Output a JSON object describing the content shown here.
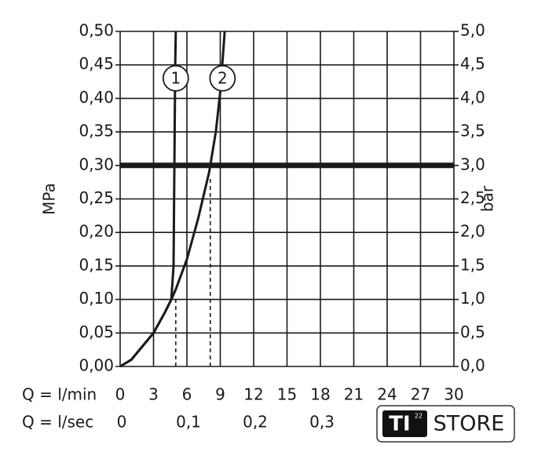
{
  "chart_data": {
    "type": "line",
    "y_label": "MPa",
    "y2_label": "bar",
    "x_label": "Q = l/min",
    "x2_label": "Q = l/sec",
    "xlim": [
      0,
      30
    ],
    "xticks": [
      0,
      3,
      6,
      9,
      12,
      15,
      18,
      21,
      24,
      27,
      30
    ],
    "x2lim": [
      0,
      0.5
    ],
    "x2ticks": [
      0,
      {
        "value": 0.1,
        "label": "0,1"
      },
      {
        "value": 0.2,
        "label": "0,2"
      },
      {
        "value": 0.3,
        "label": "0,3"
      }
    ],
    "ylim": [
      0,
      0.5
    ],
    "yticks": [
      {
        "value": 0,
        "label": "0,00"
      },
      {
        "value": 0.05,
        "label": "0,05"
      },
      {
        "value": 0.1,
        "label": "0,10"
      },
      {
        "value": 0.15,
        "label": "0,15"
      },
      {
        "value": 0.2,
        "label": "0,20"
      },
      {
        "value": 0.25,
        "label": "0,25"
      },
      {
        "value": 0.3,
        "label": "0,30"
      },
      {
        "value": 0.35,
        "label": "0,35"
      },
      {
        "value": 0.4,
        "label": "0,40"
      },
      {
        "value": 0.45,
        "label": "0,45"
      },
      {
        "value": 0.5,
        "label": "0,50"
      }
    ],
    "y2lim": [
      0,
      5
    ],
    "y2ticks": [
      {
        "value": 0,
        "label": "0,0"
      },
      {
        "value": 0.5,
        "label": "0,5"
      },
      {
        "value": 1,
        "label": "1,0"
      },
      {
        "value": 1.5,
        "label": "1,5"
      },
      {
        "value": 2,
        "label": "2,0"
      },
      {
        "value": 2.5,
        "label": "2,5"
      },
      {
        "value": 3,
        "label": "3,0"
      },
      {
        "value": 3.5,
        "label": "3,5"
      },
      {
        "value": 4,
        "label": "4,0"
      },
      {
        "value": 4.5,
        "label": "4,5"
      },
      {
        "value": 5,
        "label": "5,0"
      }
    ],
    "grid": true,
    "reference_line": {
      "y": 0.3,
      "color": "#1a1a1a"
    },
    "drop_lines": [
      {
        "x": 5,
        "y": 0.1
      },
      {
        "x": 8.1,
        "y": 0.28
      }
    ],
    "series": [
      {
        "name": "1",
        "color": "#1a1a1a",
        "x": [
          0,
          1,
          2,
          3,
          4,
          4.6,
          4.8,
          4.85,
          4.9,
          4.95,
          5.0
        ],
        "values": [
          0,
          0.01,
          0.03,
          0.05,
          0.08,
          0.1,
          0.15,
          0.25,
          0.35,
          0.45,
          0.5
        ]
      },
      {
        "name": "2",
        "color": "#1a1a1a",
        "x": [
          0,
          1,
          2,
          3,
          4,
          4.6,
          5,
          6,
          7,
          8,
          8.6,
          9,
          9.4
        ],
        "values": [
          0,
          0.01,
          0.03,
          0.05,
          0.08,
          0.1,
          0.115,
          0.16,
          0.22,
          0.29,
          0.35,
          0.41,
          0.5
        ]
      }
    ],
    "annotations": [
      {
        "text": "1",
        "x": 5,
        "y": 0.43
      },
      {
        "text": "2",
        "x": 9.2,
        "y": 0.43
      }
    ]
  },
  "logo": {
    "brand": "TI",
    "superscript": "22",
    "text": "STORE"
  }
}
